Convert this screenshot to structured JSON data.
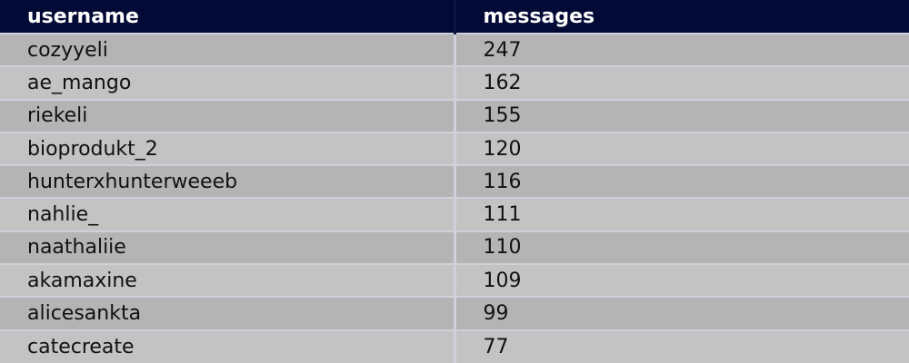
{
  "table": {
    "columns": [
      "username",
      "messages"
    ],
    "rows": [
      [
        "cozyyeli",
        "247"
      ],
      [
        "ae_mango",
        "162"
      ],
      [
        "riekeli",
        "155"
      ],
      [
        "bioprodukt_2",
        "120"
      ],
      [
        "hunterxhunterweeeb",
        "116"
      ],
      [
        "nahlie_",
        "111"
      ],
      [
        "naathaliie",
        "110"
      ],
      [
        "akamaxine",
        "109"
      ],
      [
        "alicesankta",
        "99"
      ],
      [
        "catecreate",
        "77"
      ]
    ]
  },
  "colors": {
    "header_bg": "#020a35",
    "row_dark": "#b4b4b4",
    "row_light": "#c3c3c3"
  }
}
